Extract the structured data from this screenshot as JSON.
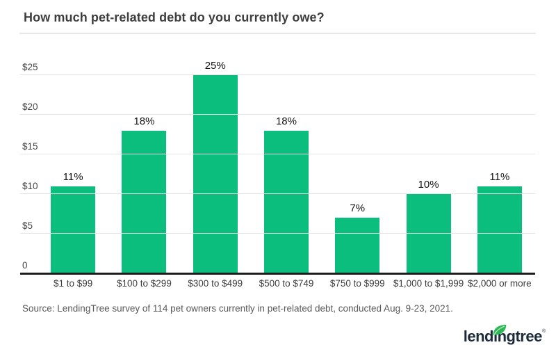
{
  "header": {
    "title": "How much pet-related debt do you currently owe?"
  },
  "chart_data": {
    "type": "bar",
    "title": "How much pet-related debt do you currently owe?",
    "categories": [
      "$1 to $99",
      "$100 to $299",
      "$300 to $499",
      "$500 to $749",
      "$750 to $999",
      "$1,000 to $1,999",
      "$2,000 or more"
    ],
    "values": [
      11,
      18,
      25,
      18,
      7,
      10,
      11
    ],
    "value_labels": [
      "11%",
      "18%",
      "25%",
      "18%",
      "7%",
      "10%",
      "11%"
    ],
    "y_ticks": [
      {
        "value": 0,
        "label": "0"
      },
      {
        "value": 5,
        "label": "$5"
      },
      {
        "value": 10,
        "label": "$10"
      },
      {
        "value": 15,
        "label": "$15"
      },
      {
        "value": 20,
        "label": "$20"
      },
      {
        "value": 25,
        "label": "$25"
      }
    ],
    "ylim": [
      0,
      25
    ],
    "xlabel": "",
    "ylabel": "",
    "grid": true,
    "legend": false,
    "bar_color": "#0cbe7d"
  },
  "source": {
    "text": "Source: LendingTree survey of 114 pet owners currently in pet-related debt, conducted Aug. 9-23, 2021."
  },
  "logo": {
    "brand": "lendingtree",
    "registered": "®",
    "brand_color": "#1c2b3a",
    "leaf_icon_color": "#2bb853"
  }
}
